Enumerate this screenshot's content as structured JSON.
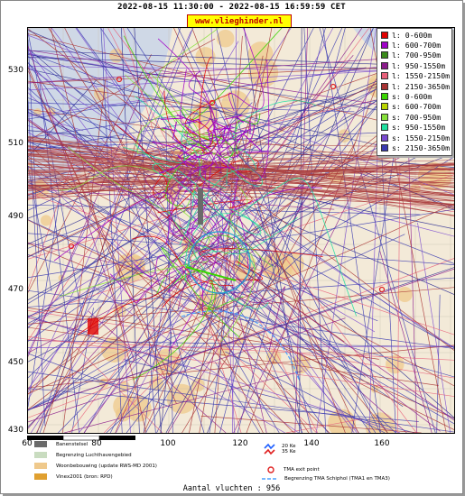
{
  "header": {
    "title": "2022-08-15 11:30:00 - 2022-08-15 16:59:59 CET",
    "site": "www.vlieghinder.nl"
  },
  "map": {
    "y_ticks": [
      "530",
      "510",
      "490",
      "470",
      "450",
      "430"
    ],
    "x_ticks": [
      "60",
      "80",
      "100",
      "120",
      "140",
      "160"
    ],
    "colors": {
      "land": "#f3ead8",
      "water": "#cfd8e6",
      "urban": "#efc98c",
      "tma": "#4aa0ff"
    }
  },
  "legend": [
    {
      "label": "l: 0-600m",
      "color": "#e00000"
    },
    {
      "label": "l: 600-700m",
      "color": "#a000c8"
    },
    {
      "label": "l: 700-950m",
      "color": "#3a8a1a"
    },
    {
      "label": "l: 950-1550m",
      "color": "#8a1a8a"
    },
    {
      "label": "l: 1550-2150m",
      "color": "#e8607a"
    },
    {
      "label": "l: 2150-3650m",
      "color": "#a83232"
    },
    {
      "label": "s: 0-600m",
      "color": "#39d400"
    },
    {
      "label": "s: 600-700m",
      "color": "#b8d400"
    },
    {
      "label": "s: 700-950m",
      "color": "#86e03a"
    },
    {
      "label": "s: 950-1550m",
      "color": "#20e0a0"
    },
    {
      "label": "s: 1550-2150m",
      "color": "#7a4ad0"
    },
    {
      "label": "s: 2150-3650m",
      "color": "#3a3ab0"
    }
  ],
  "key": {
    "items": [
      {
        "label": "Banenstelsel",
        "color": "#6a6a6a"
      },
      {
        "label": "Begrenzing Luchthavengebied",
        "color": "#c9dcc0"
      },
      {
        "label": "Woonbebouwing (update RWS-MD 2001)",
        "color": "#efc98c"
      },
      {
        "label": "Vinex2001 (bron: RPD)",
        "color": "#e0a030"
      }
    ],
    "right_items": [
      {
        "label": "20 Ke\n35 Ke"
      },
      {
        "label": "TMA exit point"
      },
      {
        "label": "Begrenzing TMA Schiphol  (TMA1 en TMA3)"
      }
    ]
  },
  "footer": {
    "count": "Aantal vluchten : 956"
  }
}
